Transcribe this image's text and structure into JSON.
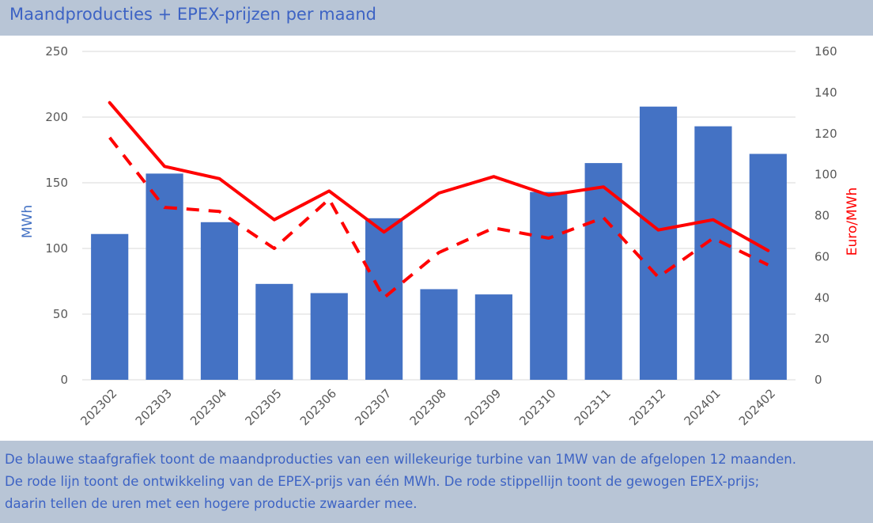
{
  "title": "Maandproducties + EPEX-prijzen per maand",
  "caption": [
    "De blauwe staafgrafiek toont de maandproducties van een willekeurige turbine van 1MW van de afgelopen 12 maanden.",
    "De rode lijn toont de ontwikkeling van de EPEX-prijs van één MWh. De rode stippellijn toont de gewogen EPEX-prijs;",
    "daarin tellen de uren met een hogere productie zwaarder mee."
  ],
  "colors": {
    "bars": "#4472c4",
    "price_line": "#ff0000",
    "y_left_label": "#4472c4",
    "y_right_label": "#ff0000",
    "axis_text": "#595959",
    "grid": "#d9d9d9"
  },
  "chart_data": {
    "type": "bar",
    "categories": [
      "202302",
      "202303",
      "202304",
      "202305",
      "202306",
      "202307",
      "202308",
      "202309",
      "202310",
      "202311",
      "202312",
      "202401",
      "202402"
    ],
    "ylabel": "MWh",
    "ylabel_right": "Euro/MWh",
    "ylim": [
      0,
      250
    ],
    "y_ticks": [
      0,
      50,
      100,
      150,
      200,
      250
    ],
    "ylim_right": [
      0,
      160
    ],
    "y_ticks_right": [
      0,
      20,
      40,
      60,
      80,
      100,
      120,
      140,
      160
    ],
    "grid": true,
    "legend": "none",
    "series": [
      {
        "type": "bar",
        "axis": "left",
        "values": [
          111,
          157,
          120,
          73,
          66,
          123,
          69,
          65,
          143,
          165,
          208,
          193,
          172
        ]
      },
      {
        "type": "line",
        "style": "solid",
        "axis": "right",
        "values": [
          135,
          104,
          98,
          78,
          92,
          72,
          91,
          99,
          90,
          94,
          73,
          78,
          63
        ]
      },
      {
        "type": "line",
        "style": "dashed",
        "axis": "right",
        "values": [
          118,
          84,
          82,
          64,
          88,
          40,
          62,
          74,
          69,
          79,
          50,
          69,
          56
        ]
      }
    ]
  }
}
